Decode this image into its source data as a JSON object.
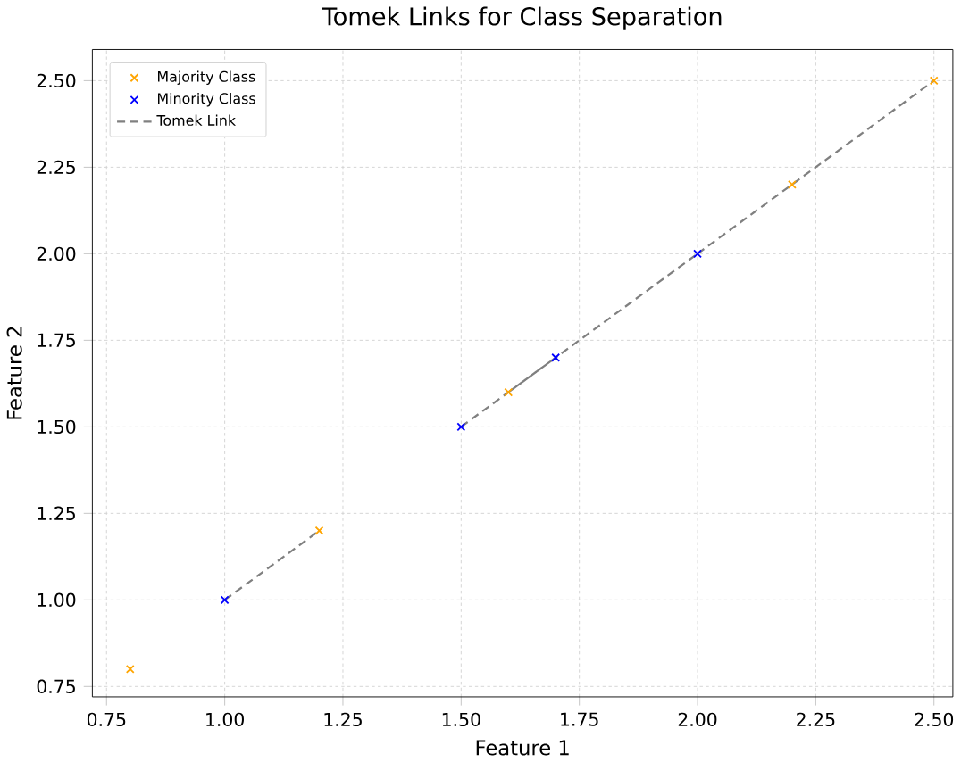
{
  "chart_data": {
    "type": "scatter",
    "title": "Tomek Links for Class Separation",
    "xlabel": "Feature 1",
    "ylabel": "Feature 2",
    "xlim": [
      0.72,
      2.54
    ],
    "ylim": [
      0.72,
      2.59
    ],
    "xticks": [
      {
        "value": 0.75,
        "label": "0.75"
      },
      {
        "value": 1.0,
        "label": "1.00"
      },
      {
        "value": 1.25,
        "label": "1.25"
      },
      {
        "value": 1.5,
        "label": "1.50"
      },
      {
        "value": 1.75,
        "label": "1.75"
      },
      {
        "value": 2.0,
        "label": "2.00"
      },
      {
        "value": 2.25,
        "label": "2.25"
      },
      {
        "value": 2.5,
        "label": "2.50"
      }
    ],
    "yticks": [
      {
        "value": 0.75,
        "label": "0.75"
      },
      {
        "value": 1.0,
        "label": "1.00"
      },
      {
        "value": 1.25,
        "label": "1.25"
      },
      {
        "value": 1.5,
        "label": "1.50"
      },
      {
        "value": 1.75,
        "label": "1.75"
      },
      {
        "value": 2.0,
        "label": "2.00"
      },
      {
        "value": 2.25,
        "label": "2.25"
      },
      {
        "value": 2.5,
        "label": "2.50"
      }
    ],
    "grid": true,
    "legend": "top left",
    "marker": "cross",
    "series": [
      {
        "name": "Majority Class",
        "color": "#ffa500",
        "x": [
          0.8,
          1.2,
          1.6,
          2.2,
          2.5
        ],
        "values": [
          0.8,
          1.2,
          1.6,
          2.2,
          2.5
        ]
      },
      {
        "name": "Minority Class",
        "color": "#0000ff",
        "x": [
          1.0,
          1.5,
          1.7,
          2.0
        ],
        "values": [
          1.0,
          1.5,
          1.7,
          2.0
        ]
      },
      {
        "name": "Tomek Link",
        "type": "line",
        "line_style": "dashed",
        "marker": "none",
        "color": "#808080",
        "x": [
          1.0,
          1.2,
          null,
          1.5,
          1.7,
          null,
          1.6,
          1.7,
          2.0,
          null,
          2.0,
          2.2,
          null,
          2.0,
          2.5
        ],
        "values": [
          1.0,
          1.2,
          null,
          1.5,
          1.7,
          null,
          1.6,
          1.7,
          2.0,
          null,
          2.0,
          2.2,
          null,
          2.0,
          2.5
        ]
      }
    ]
  }
}
